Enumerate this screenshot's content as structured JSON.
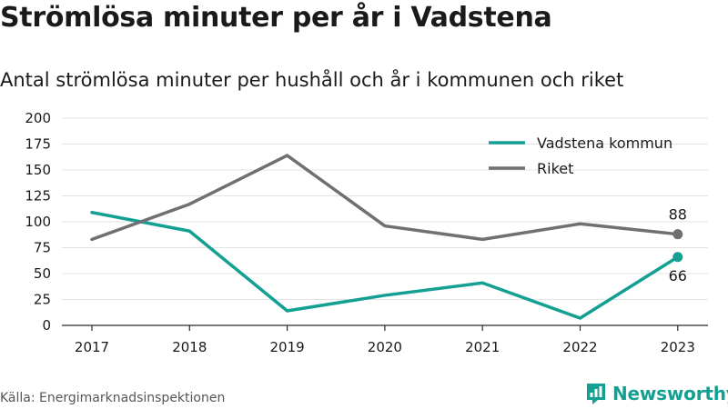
{
  "title": "Strömlösa minuter per år i Vadstena",
  "subtitle": "Antal strömlösa minuter per hushåll och år i kommunen och riket",
  "source": "Källa: Energimarknadsinspektionen",
  "brand": "Newsworthy",
  "logo_icon": "newsworthy-bar-logo",
  "chart_data": {
    "type": "line",
    "title": "Strömlösa minuter per år i Vadstena",
    "subtitle": "Antal strömlösa minuter per hushåll och år i kommunen och riket",
    "x": [
      "2017",
      "2018",
      "2019",
      "2020",
      "2021",
      "2022",
      "2023"
    ],
    "ylim": [
      0,
      200
    ],
    "yticks": [
      0,
      25,
      50,
      75,
      100,
      125,
      150,
      175,
      200
    ],
    "grid": true,
    "legend_position": "top-right",
    "series": [
      {
        "name": "Vadstena kommun",
        "color": "#13a093",
        "values": [
          109,
          91,
          14,
          29,
          41,
          7,
          66
        ],
        "end_label": "66"
      },
      {
        "name": "Riket",
        "color": "#707073",
        "values": [
          83,
          117,
          164,
          96,
          83,
          98,
          88
        ],
        "end_label": "88"
      }
    ]
  }
}
